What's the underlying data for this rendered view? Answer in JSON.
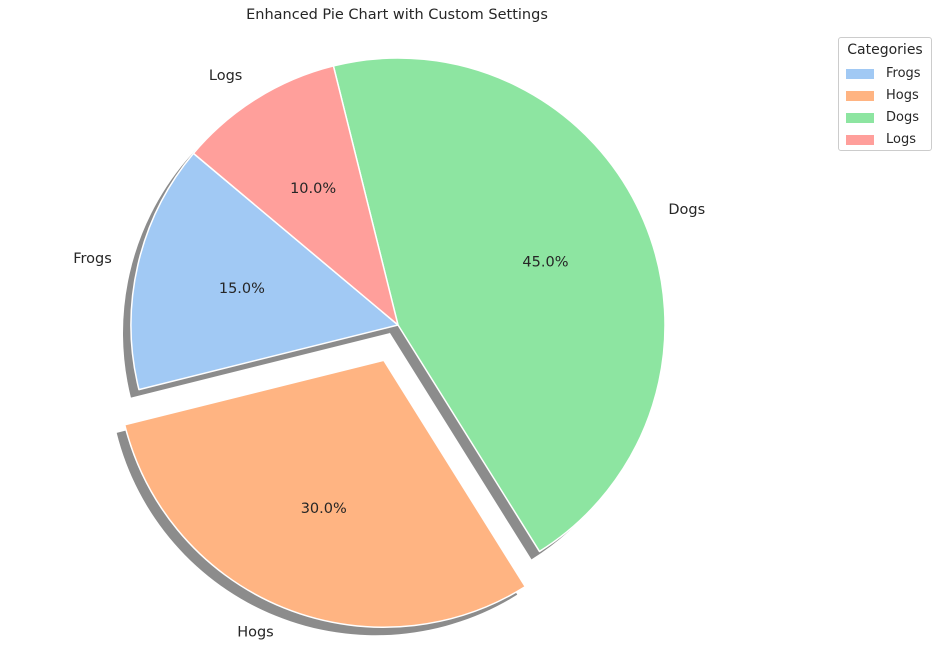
{
  "chart_data": {
    "type": "pie",
    "title": "Enhanced Pie Chart with Custom Settings",
    "categories": [
      "Frogs",
      "Hogs",
      "Dogs",
      "Logs"
    ],
    "values": [
      15,
      30,
      45,
      10
    ],
    "value_labels": [
      "15.0%",
      "30.0%",
      "45.0%",
      "10.0%"
    ],
    "colors": [
      "#a1c9f4",
      "#ffb482",
      "#8de5a1",
      "#ff9f9b"
    ],
    "exploded": [
      "Hogs"
    ],
    "shadow": true,
    "legend": {
      "title": "Categories",
      "placement": "top-right",
      "entries": [
        "Frogs",
        "Hogs",
        "Dogs",
        "Logs"
      ]
    }
  }
}
